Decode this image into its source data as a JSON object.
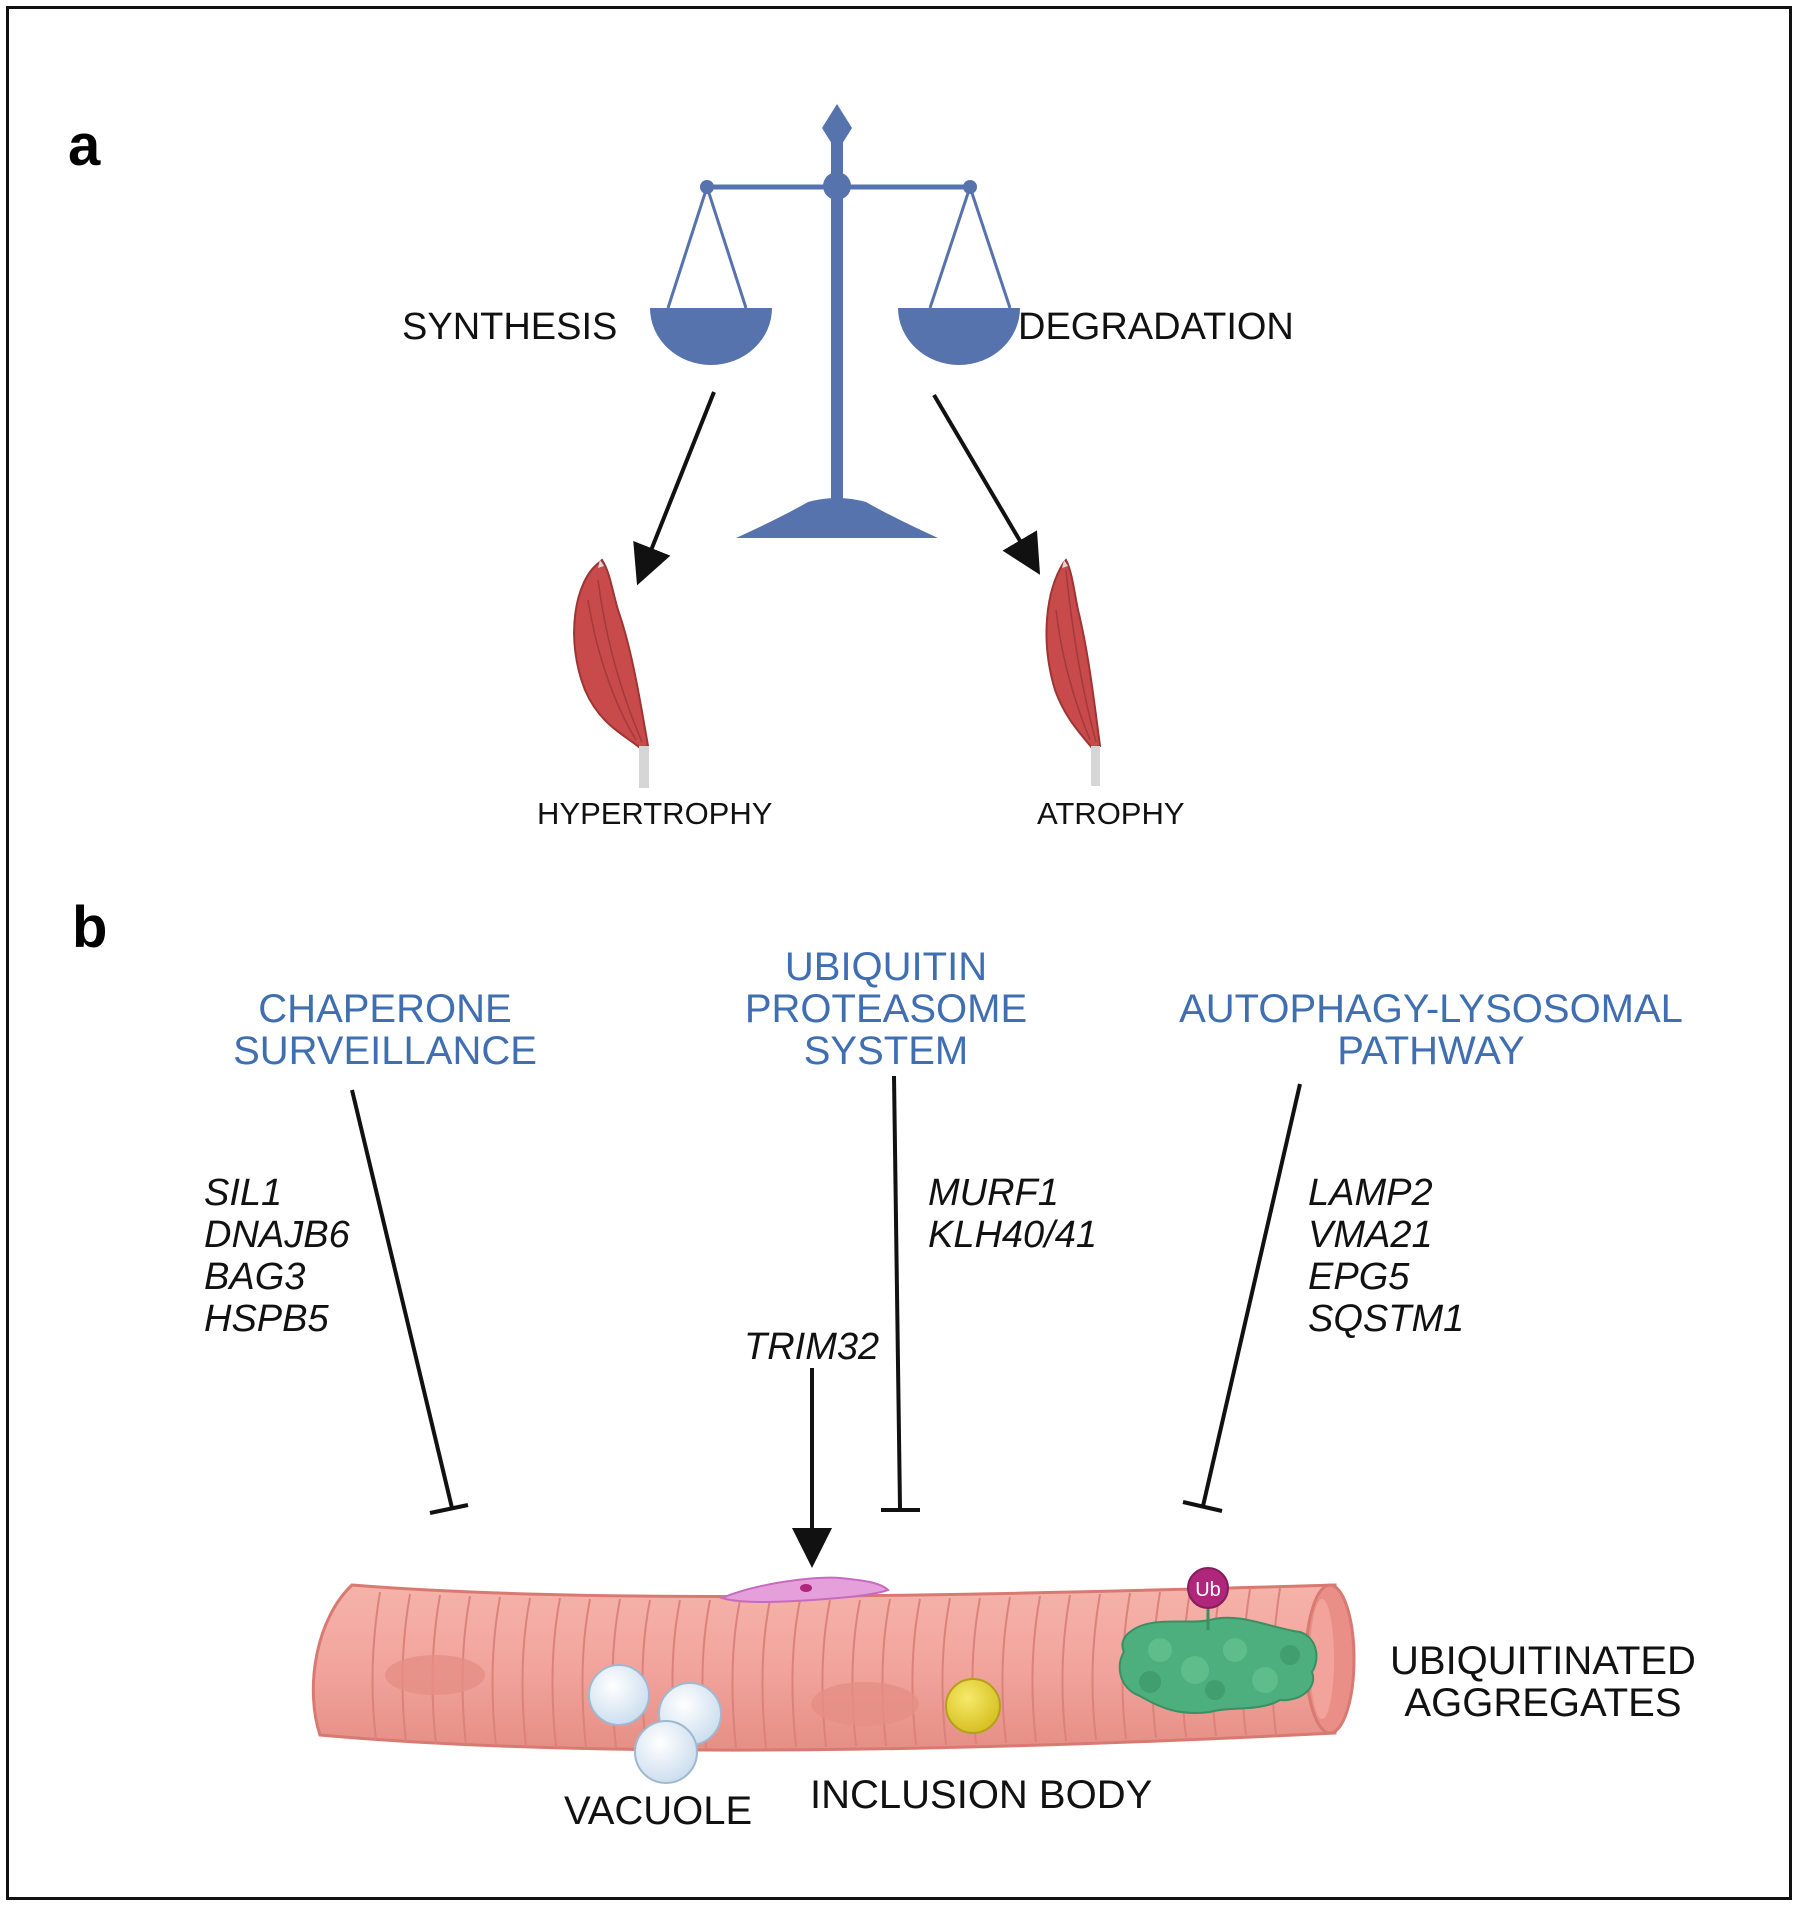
{
  "panel_a": {
    "label": "a",
    "left_pan_label": "SYNTHESIS",
    "right_pan_label": "DEGRADATION",
    "left_outcome": "HYPERTROPHY",
    "right_outcome": "ATROPHY",
    "colors": {
      "scale": "#5673ad",
      "muscle": "#c94a4a",
      "arrow": "#111111"
    }
  },
  "panel_b": {
    "label": "b",
    "pathways": [
      {
        "title_lines": [
          "CHAPERONE",
          "SURVEILLANCE"
        ],
        "genes": [
          "SIL1",
          "DNAJB6",
          "BAG3",
          "HSPB5"
        ]
      },
      {
        "title_lines": [
          "UBIQUITIN",
          "PROTEASOME",
          "SYSTEM"
        ],
        "genes": [
          "MURF1",
          "KLH40/41"
        ]
      },
      {
        "title_lines": [
          "AUTOPHAGY-LYSOSOMAL",
          "PATHWAY"
        ],
        "genes": [
          "LAMP2",
          "VMA21",
          "EPG5",
          "SQSTM1"
        ]
      }
    ],
    "trim_gene": "TRIM32",
    "ub_badge": "Ub",
    "fiber_labels": {
      "aggregates_lines": [
        "UBIQUITINATED",
        "AGGREGATES"
      ],
      "vacuole": "VACUOLE",
      "inclusion_body": "INCLUSION BODY"
    },
    "colors": {
      "title": "#3f6fb0",
      "fiber": "#f2a49c",
      "aggregate": "#4caf7d",
      "inclusion": "#e8d43a",
      "vacuole": "#e8f2fa",
      "ub": "#b0267a",
      "nucleus": "#d97ac8"
    }
  }
}
